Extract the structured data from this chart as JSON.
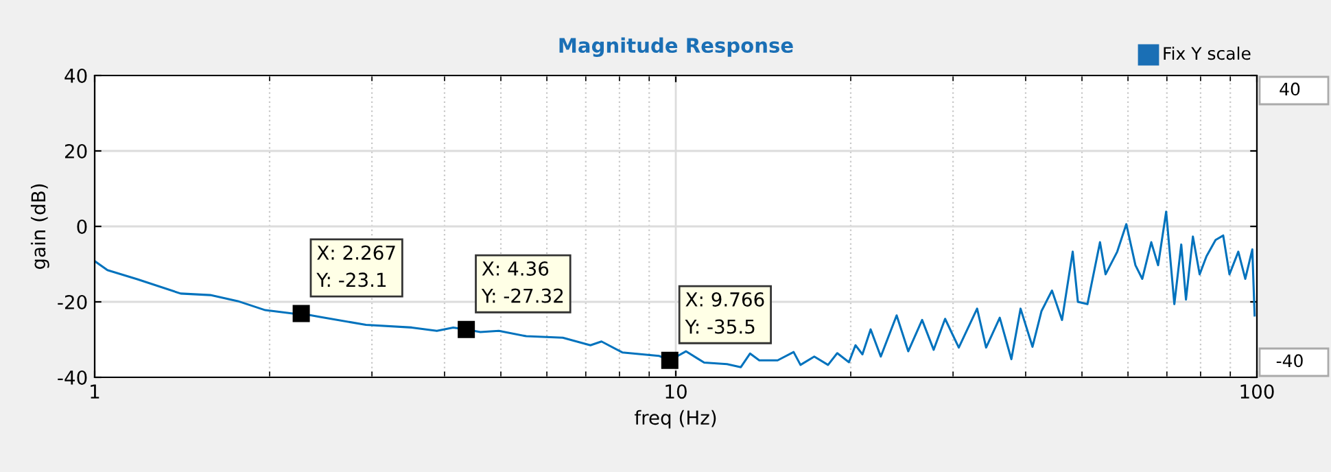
{
  "chart_data": {
    "type": "line",
    "title": "Magnitude Response",
    "xlabel": "freq (Hz)",
    "ylabel": "gain (dB)",
    "log": "x",
    "xlim": [
      1,
      100
    ],
    "xticks": [
      1,
      10,
      100
    ],
    "ylim": [
      -40,
      40
    ],
    "yticks": [
      -40,
      -20,
      0,
      20,
      40
    ],
    "grid": true,
    "marker": "none",
    "line_style": "solid",
    "series": [
      {
        "color": "#0072bd",
        "x": [
          1,
          1.052,
          1.184,
          1.406,
          1.581,
          1.763,
          1.966,
          2.193,
          2.267,
          2.443,
          2.93,
          3.513,
          3.88,
          4.14,
          4.36,
          4.61,
          4.96,
          5.53,
          6.39,
          7.13,
          7.45,
          8.09,
          9.35,
          9.766,
          10.41,
          11.19,
          12.25,
          12.94,
          13.42,
          13.92,
          14.97,
          15.95,
          16.39,
          17.31,
          18.28,
          18.96,
          19.86,
          20.38,
          20.95,
          21.64,
          22.53,
          23.99,
          25.12,
          26.54,
          27.78,
          29.07,
          30.69,
          33.0,
          34.2,
          36.1,
          37.8,
          39.2,
          41.1,
          42.6,
          44.4,
          46.2,
          48.2,
          49.2,
          51.1,
          53.7,
          54.9,
          57.5,
          59.6,
          61.8,
          63.5,
          65.8,
          67.6,
          69.8,
          72.1,
          74.1,
          75.5,
          77.6,
          79.7,
          81.9,
          84.9,
          87.5,
          89.7,
          92.9,
          95.5,
          98.2,
          99.1
        ],
        "values": [
          -9.2,
          -11.6,
          -14.0,
          -17.8,
          -18.2,
          -19.8,
          -22.2,
          -23.1,
          -23.1,
          -24.0,
          -26.1,
          -26.8,
          -27.7,
          -26.8,
          -27.32,
          -28.0,
          -27.7,
          -29.1,
          -29.5,
          -31.5,
          -30.5,
          -33.4,
          -34.3,
          -35.5,
          -33.1,
          -36.1,
          -36.5,
          -37.3,
          -33.7,
          -35.5,
          -35.5,
          -33.3,
          -36.7,
          -34.5,
          -36.7,
          -33.6,
          -36.0,
          -31.5,
          -33.9,
          -27.3,
          -34.5,
          -23.6,
          -33.1,
          -24.8,
          -32.7,
          -24.5,
          -32.1,
          -21.8,
          -32.1,
          -24.2,
          -35.2,
          -21.8,
          -31.9,
          -22.4,
          -17.0,
          -24.8,
          -6.7,
          -20.0,
          -20.6,
          -4.2,
          -12.7,
          -6.7,
          0.6,
          -10.3,
          -13.9,
          -4.2,
          -10.3,
          3.9,
          -20.6,
          -4.8,
          -19.4,
          -2.7,
          -12.7,
          -7.9,
          -3.6,
          -2.4,
          -12.7,
          -6.7,
          -13.9,
          -6.1,
          -23.6
        ]
      }
    ],
    "annotations": [
      {
        "text": "X: 2.267\nY: -23.1",
        "x": 2.267,
        "y": -23.1
      },
      {
        "text": "X: 4.36\nY: -27.32",
        "x": 4.36,
        "y": -27.32
      },
      {
        "text": "X: 9.766\nY: -35.5",
        "x": 9.766,
        "y": -35.5
      },
      "Fix Y scale",
      "40",
      "-40"
    ]
  }
}
